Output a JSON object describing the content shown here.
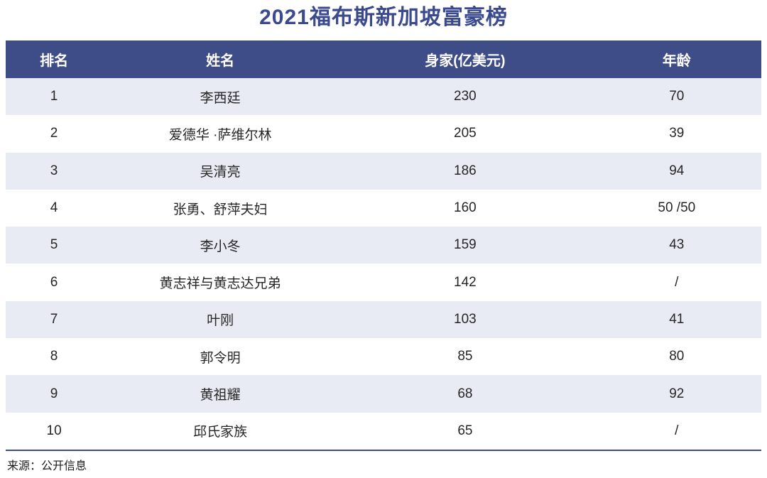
{
  "page": {
    "title": "2021福布斯新加坡富豪榜",
    "source": "来源：公开信息"
  },
  "colors": {
    "title_text": "#3B4A8E",
    "header_background": "#3E4D88",
    "header_text": "#FFFFFF",
    "stripe_row_background": "#E9EBF4",
    "body_text": "#262626",
    "bottom_rule": "#3F4E88"
  },
  "chart_data": {
    "type": "table",
    "title": "2021福布斯新加坡富豪榜",
    "columns": [
      "排名",
      "姓名",
      "身家(亿美元)",
      "年龄"
    ],
    "rows": [
      {
        "rank": "1",
        "name": "李西廷",
        "worth": "230",
        "age": "70"
      },
      {
        "rank": "2",
        "name": "爱德华 ·萨维尔林",
        "worth": "205",
        "age": "39"
      },
      {
        "rank": "3",
        "name": "吴清亮",
        "worth": "186",
        "age": "94"
      },
      {
        "rank": "4",
        "name": "张勇、舒萍夫妇",
        "worth": "160",
        "age": "50 /50"
      },
      {
        "rank": "5",
        "name": "李小冬",
        "worth": "159",
        "age": "43"
      },
      {
        "rank": "6",
        "name": "黄志祥与黄志达兄弟",
        "worth": "142",
        "age": "/"
      },
      {
        "rank": "7",
        "name": "叶刚",
        "worth": "103",
        "age": "41"
      },
      {
        "rank": "8",
        "name": "郭令明",
        "worth": "85",
        "age": "80"
      },
      {
        "rank": "9",
        "name": "黄祖耀",
        "worth": "68",
        "age": "92"
      },
      {
        "rank": "10",
        "name": "邱氏家族",
        "worth": "65",
        "age": "/"
      }
    ]
  }
}
